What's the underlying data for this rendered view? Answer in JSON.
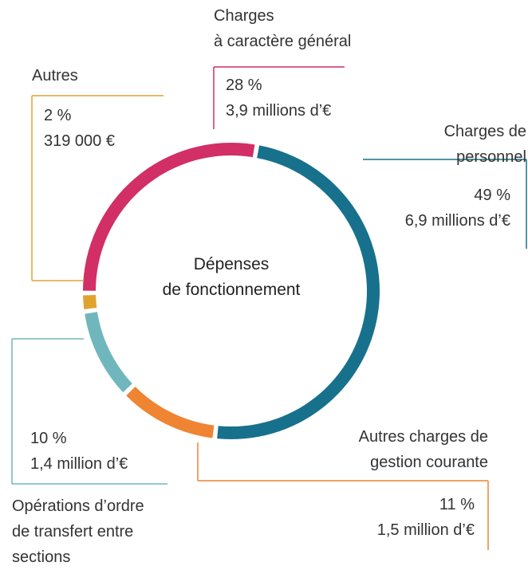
{
  "chart_data": {
    "type": "donut",
    "title": "Dépenses\nde fonctionnement",
    "categories": [
      "Charges de\npersonnel",
      "Autres charges de\ngestion courante",
      "Opérations d’ordre\nde transfert entre\nsections",
      "Autres",
      "Charges\nà caractère général"
    ],
    "values": [
      49,
      11,
      10,
      2,
      28
    ],
    "value_labels": [
      "49 %",
      "11 %",
      "10 %",
      "2 %",
      "28 %"
    ],
    "amount_labels": [
      "6,9 millions d’€",
      "1,5 million d’€",
      "1,4 million d’€",
      "319 000 €",
      "3,9 millions d’€"
    ],
    "colors": [
      "#17718c",
      "#ef8433",
      "#6fb7bd",
      "#e0a330",
      "#d12f66"
    ]
  }
}
